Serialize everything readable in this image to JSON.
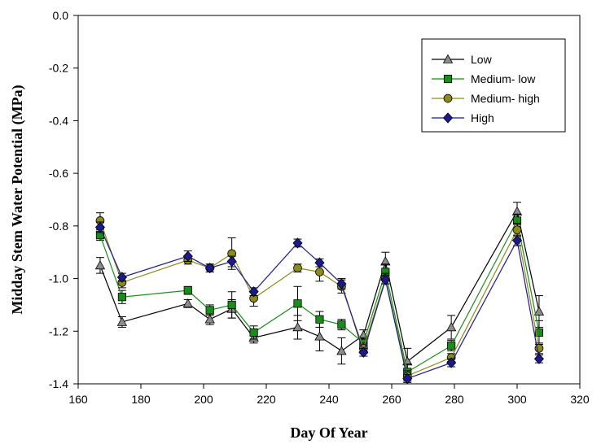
{
  "chart_data": {
    "type": "line",
    "xlabel": "Day Of Year",
    "ylabel": "Midday Stem Water Potential (MPa)",
    "xlim": [
      160,
      320
    ],
    "ylim": [
      -1.4,
      0.0
    ],
    "xticks": [
      160,
      180,
      200,
      220,
      240,
      260,
      280,
      300,
      320
    ],
    "yticks": [
      0.0,
      -0.2,
      -0.4,
      -0.6,
      -0.8,
      -1.0,
      -1.2,
      -1.4
    ],
    "x_tick_labels": [
      "160",
      "180",
      "200",
      "220",
      "240",
      "260",
      "280",
      "300",
      "320"
    ],
    "y_tick_labels": [
      "0.0",
      "-0.2",
      "-0.4",
      "-0.6",
      "-0.8",
      "-1.0",
      "-1.2",
      "-1.4"
    ],
    "grid": false,
    "legend_position": "top-right",
    "x": [
      167,
      174,
      195,
      202,
      209,
      216,
      230,
      237,
      244,
      251,
      258,
      265,
      279,
      300,
      307
    ],
    "series": [
      {
        "name": "Low",
        "marker": "triangle",
        "marker_color": "#8c8c8c",
        "line_color": "#000000",
        "values": [
          -0.95,
          -1.165,
          -1.095,
          -1.155,
          -1.115,
          -1.225,
          -1.185,
          -1.22,
          -1.275,
          -1.215,
          -0.935,
          -1.315,
          -1.185,
          -0.745,
          -1.125
        ],
        "errors": [
          0.03,
          0.02,
          0.015,
          0.02,
          0.035,
          0.02,
          0.045,
          0.055,
          0.05,
          0.02,
          0.035,
          0.05,
          0.045,
          0.035,
          0.06
        ]
      },
      {
        "name": "Medium- low",
        "marker": "square",
        "marker_color": "#1a8c1a",
        "line_color": "#1a8c1a",
        "values": [
          -0.835,
          -1.07,
          -1.045,
          -1.12,
          -1.1,
          -1.205,
          -1.095,
          -1.155,
          -1.175,
          -1.245,
          -0.975,
          -1.355,
          -1.255,
          -0.78,
          -1.205
        ],
        "errors": [
          0.02,
          0.025,
          0.015,
          0.02,
          0.05,
          0.025,
          0.065,
          0.03,
          0.02,
          0.02,
          0.03,
          0.03,
          0.02,
          0.025,
          0.045
        ]
      },
      {
        "name": "Medium- high",
        "marker": "circle",
        "marker_color": "#8c8a1a",
        "line_color": "#8c8a1a",
        "values": [
          -0.78,
          -1.015,
          -0.93,
          -0.96,
          -0.905,
          -1.075,
          -0.96,
          -0.975,
          -1.03,
          -1.265,
          -1.0,
          -1.37,
          -1.3,
          -0.815,
          -1.265
        ],
        "errors": [
          0.03,
          0.02,
          0.015,
          0.015,
          0.06,
          0.03,
          0.015,
          0.035,
          0.025,
          0.02,
          0.02,
          0.02,
          0.015,
          0.025,
          0.02
        ]
      },
      {
        "name": "High",
        "marker": "diamond",
        "marker_color": "#1a1a8c",
        "line_color": "#1a1a8c",
        "values": [
          -0.805,
          -0.995,
          -0.915,
          -0.96,
          -0.935,
          -1.05,
          -0.865,
          -0.94,
          -1.02,
          -1.28,
          -1.005,
          -1.38,
          -1.32,
          -0.855,
          -1.305
        ],
        "errors": [
          0.02,
          0.015,
          0.02,
          0.015,
          0.02,
          0.015,
          0.015,
          0.015,
          0.02,
          0.015,
          0.015,
          0.015,
          0.015,
          0.02,
          0.015
        ]
      }
    ]
  }
}
